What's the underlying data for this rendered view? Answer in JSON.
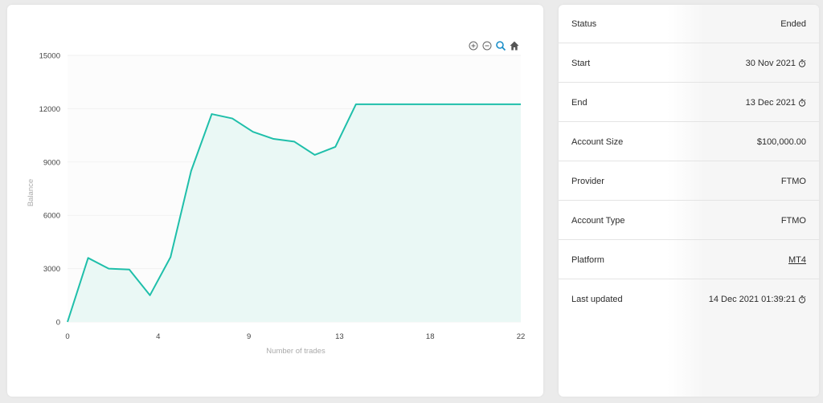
{
  "chart_data": {
    "type": "area",
    "x": [
      0,
      1,
      2,
      3,
      4,
      5,
      6,
      7,
      8,
      9,
      10,
      11,
      12,
      13,
      14,
      15,
      16,
      17,
      18,
      19,
      20,
      21,
      22
    ],
    "values": [
      0,
      3600,
      3000,
      2950,
      1500,
      3650,
      8500,
      11700,
      11450,
      10700,
      10300,
      10150,
      9400,
      9850,
      12250,
      12250,
      12250,
      12250,
      12250,
      12250,
      12250,
      12250,
      12250
    ],
    "xticks": [
      "0",
      "4",
      "9",
      "13",
      "18",
      "22"
    ],
    "xtick_positions": [
      0,
      4.4,
      8.8,
      13.2,
      17.6,
      22
    ],
    "yticks": [
      "0",
      "3000",
      "6000",
      "9000",
      "12000",
      "15000"
    ],
    "xlabel": "Number of trades",
    "ylabel": "Balance",
    "xlim": [
      0,
      22
    ],
    "ylim": [
      0,
      15000
    ],
    "grid": true,
    "line_color": "#1fbfaa",
    "fill_color": "#eaf8f5"
  },
  "toolbar": {
    "icons": [
      "zoom-in-icon",
      "zoom-out-icon",
      "zoom-icon",
      "home-icon"
    ]
  },
  "info": {
    "rows": [
      {
        "label": "Status",
        "value": "Ended"
      },
      {
        "label": "Start",
        "value": "30 Nov 2021"
      },
      {
        "label": "End",
        "value": "13 Dec 2021"
      },
      {
        "label": "Account Size",
        "value": "$100,000.00"
      },
      {
        "label": "Provider",
        "value": "FTMO"
      },
      {
        "label": "Account Type",
        "value": "FTMO"
      },
      {
        "label": "Platform",
        "value": "MT4"
      },
      {
        "label": "Last updated",
        "value": "14 Dec 2021 01:39:21"
      }
    ]
  }
}
